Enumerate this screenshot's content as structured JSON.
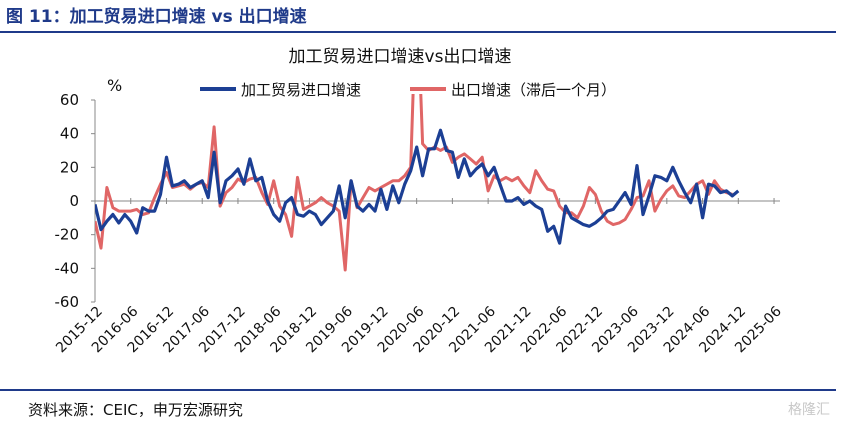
{
  "figure": {
    "title": "图 11：加工贸易进口增速 vs 出口增速",
    "source": "资料来源：CEIC，申万宏源研究",
    "watermark": "格隆汇"
  },
  "colors": {
    "rule": "#1f3a8a",
    "series1": "#1c3f94",
    "series2": "#e06666"
  },
  "chart_data": {
    "type": "line",
    "title": "加工贸易进口增速vs出口增速",
    "ylabel": "%",
    "ylim": [
      -60,
      60
    ],
    "yticks": [
      60,
      40,
      20,
      0,
      -20,
      -40,
      -60
    ],
    "xlim": [
      "2015-12",
      "2025-07"
    ],
    "xticks": [
      "2015-12",
      "2016-06",
      "2016-12",
      "2017-06",
      "2017-12",
      "2018-06",
      "2018-12",
      "2019-06",
      "2019-12",
      "2020-06",
      "2020-12",
      "2021-06",
      "2021-12",
      "2022-06",
      "2022-12",
      "2023-06",
      "2023-12",
      "2024-06",
      "2024-12",
      "2025-06"
    ],
    "grid": false,
    "legend": "top",
    "series": [
      {
        "name": "加工贸易进口增速",
        "color": "#1c3f94",
        "start": "2015-12",
        "values": [
          -2,
          -17,
          -12,
          -8,
          -13,
          -8,
          -12,
          -19,
          -4,
          -6,
          -6,
          4,
          26,
          9,
          10,
          12,
          8,
          10,
          12,
          2,
          29,
          -1,
          12,
          15,
          19,
          10,
          25,
          12,
          14,
          0,
          -8,
          -12,
          -1,
          2,
          -8,
          -9,
          -6,
          -8,
          -14,
          -10,
          -6,
          9,
          -10,
          12,
          -3,
          -6,
          -2,
          -6,
          7,
          -5,
          9,
          -1,
          10,
          18,
          32,
          15,
          31,
          31,
          42,
          30,
          29,
          14,
          25,
          15,
          19,
          22,
          15,
          20,
          10,
          0,
          0,
          2,
          -2,
          0,
          -3,
          -5,
          -18,
          -15,
          -25,
          -3,
          -10,
          -12,
          -14,
          -15,
          -13,
          -10,
          -6,
          -5,
          0,
          5,
          -2,
          21,
          -8,
          3,
          15,
          14,
          12,
          20,
          12,
          5,
          -1,
          10,
          -10,
          10,
          9,
          5,
          6,
          3,
          6
        ]
      },
      {
        "name": "出口增速（滞后一个月）",
        "color": "#e06666",
        "start": "2015-12",
        "values": [
          -12,
          -28,
          8,
          -4,
          -6,
          -6,
          -6,
          -5,
          -8,
          -7,
          2,
          10,
          17,
          8,
          9,
          10,
          7,
          10,
          11,
          8,
          44,
          -3,
          5,
          8,
          13,
          11,
          13,
          14,
          5,
          -2,
          12,
          -3,
          -8,
          -21,
          14,
          -5,
          -3,
          -1,
          2,
          -1,
          -3,
          -6,
          -41,
          12,
          -4,
          2,
          8,
          6,
          8,
          10,
          12,
          12,
          15,
          20,
          130,
          34,
          30,
          32,
          30,
          32,
          23,
          26,
          28,
          25,
          22,
          26,
          6,
          15,
          12,
          14,
          12,
          14,
          9,
          5,
          18,
          12,
          7,
          6,
          -3,
          -7,
          -7,
          -10,
          -3,
          8,
          4,
          -6,
          -12,
          -14,
          -13,
          -11,
          -5,
          2,
          3,
          12,
          -6,
          1,
          6,
          9,
          3,
          2,
          6,
          10,
          12,
          4,
          12,
          7,
          5,
          4
        ]
      }
    ]
  }
}
